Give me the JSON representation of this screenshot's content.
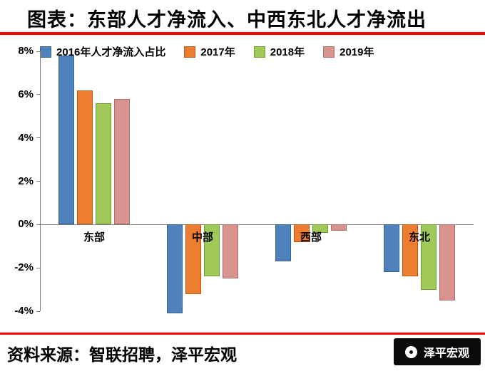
{
  "title": "图表：东部人才净流入、中西东北人才净流出",
  "footer": {
    "source": "资料来源：智联招聘，泽平宏观",
    "logo_text": "泽平宏观"
  },
  "accent_color": "#fe0000",
  "chart_data": {
    "type": "bar",
    "title": "东部人才净流入、中西东北人才净流出",
    "categories": [
      "东部",
      "中部",
      "西部",
      "东北"
    ],
    "series": [
      {
        "name": "2016年人才净流入占比",
        "color": "#4f81bd",
        "border": "#38608f",
        "values": [
          7.8,
          -4.1,
          -1.7,
          -2.2
        ]
      },
      {
        "name": "2017年",
        "color": "#ed7d31",
        "border": "#b85c1e",
        "values": [
          6.2,
          -3.2,
          -0.8,
          -2.4
        ]
      },
      {
        "name": "2018年",
        "color": "#a0c95a",
        "border": "#769a38",
        "values": [
          5.6,
          -2.4,
          -0.4,
          -3.0
        ]
      },
      {
        "name": "2019年",
        "color": "#d9938f",
        "border": "#ad6f6b",
        "values": [
          5.8,
          -2.5,
          -0.3,
          -3.5
        ]
      }
    ],
    "ylim": [
      -4,
      8
    ],
    "ytick_labels": [
      "8%",
      "6%",
      "4%",
      "2%",
      "0%",
      "-2%",
      "-4%"
    ],
    "ytick_values": [
      8,
      6,
      4,
      2,
      0,
      -2,
      -4
    ],
    "ylabel": "",
    "xlabel": "",
    "grid": false,
    "legend_position": "top"
  }
}
